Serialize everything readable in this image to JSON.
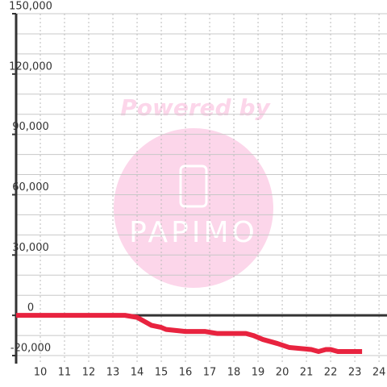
{
  "chart_data": {
    "type": "line",
    "annotations": [
      "Powered by",
      "PAPIMO"
    ],
    "xlim": [
      9,
      24.33
    ],
    "xticks": [
      10,
      11,
      12,
      13,
      14,
      15,
      16,
      17,
      18,
      19,
      20,
      21,
      22,
      23,
      24
    ],
    "ylim": [
      -24000,
      150000
    ],
    "yticks": [
      {
        "value": -20000,
        "label": "-20,000"
      },
      0,
      {
        "value": 30000,
        "label": "30,000"
      },
      {
        "value": 60000,
        "label": "60,000"
      },
      {
        "value": 90000,
        "label": "90,000"
      },
      {
        "value": 120000,
        "label": "120,000"
      },
      {
        "value": 150000,
        "label": "150,000"
      }
    ],
    "ygrid": [
      -20000,
      -10000,
      10000,
      20000,
      30000,
      40000,
      50000,
      60000,
      70000,
      80000,
      90000,
      100000,
      110000,
      120000,
      130000,
      140000,
      150000
    ],
    "grid": true,
    "series": [
      {
        "color": "#e8233f",
        "x": [
          9,
          10,
          11,
          12,
          13,
          13.5,
          14,
          14.3,
          14.6,
          15,
          15.2,
          16,
          16.8,
          17.3,
          18.5,
          18.8,
          19.2,
          19.8,
          20.3,
          21.2,
          21.5,
          21.8,
          22,
          22.3,
          22.5,
          23.3
        ],
        "values": [
          0,
          0,
          0,
          0,
          0,
          0,
          -1000,
          -3000,
          -5000,
          -6000,
          -7000,
          -8000,
          -8000,
          -9000,
          -9000,
          -10000,
          -12000,
          -14000,
          -16000,
          -17000,
          -18000,
          -17000,
          -17000,
          -18000,
          -18000,
          -18000
        ]
      }
    ]
  }
}
